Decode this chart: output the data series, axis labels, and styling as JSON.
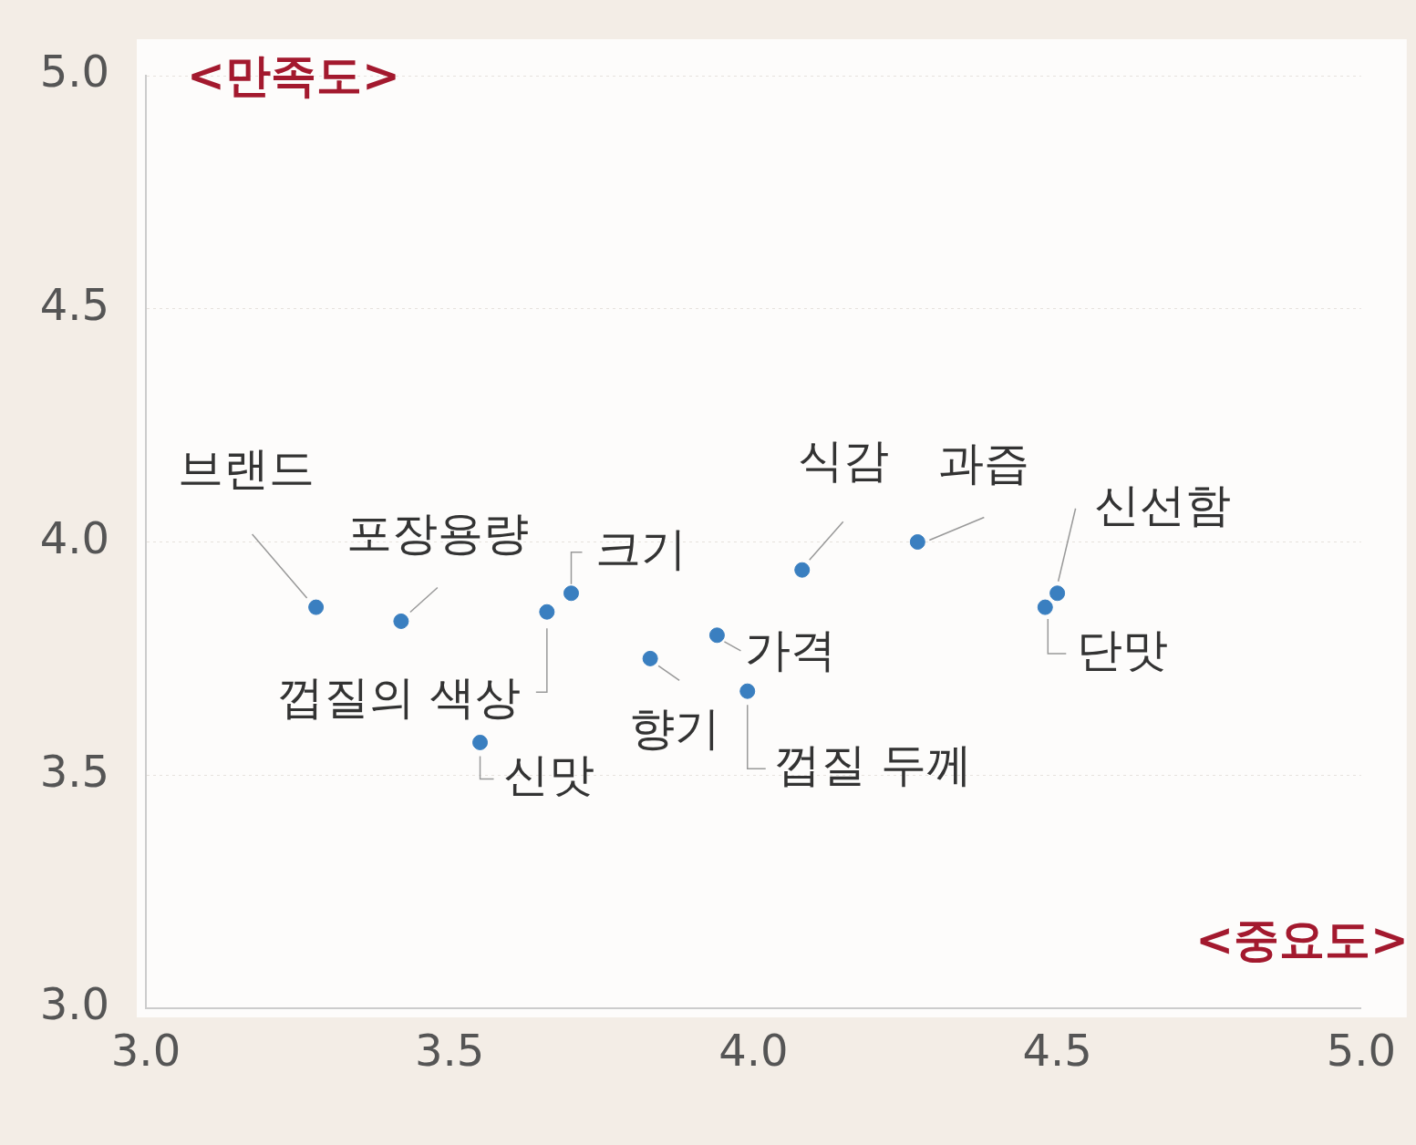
{
  "chart_data": {
    "type": "scatter",
    "xlabel": "<중요도>",
    "ylabel": "<만족도>",
    "x": [
      3.28,
      3.42,
      3.66,
      3.7,
      3.55,
      3.83,
      3.94,
      3.99,
      4.08,
      4.27,
      4.5,
      4.48
    ],
    "series": [
      {
        "color": "#3a7fc0",
        "values": [
          3.86,
          3.83,
          3.85,
          3.89,
          3.57,
          3.75,
          3.8,
          3.68,
          3.94,
          4.0,
          3.89,
          3.86
        ]
      }
    ],
    "xlim": [
      3.0,
      5.0
    ],
    "ylim": [
      3.0,
      5.0
    ],
    "xticks": [
      {
        "value": 3,
        "label": "3.0"
      },
      3.5,
      {
        "value": 4,
        "label": "4.0"
      },
      4.5,
      {
        "value": 5,
        "label": "5.0"
      }
    ],
    "yticks": [
      {
        "value": 3,
        "label": "3.0"
      },
      3.5,
      {
        "value": 4,
        "label": "4.0"
      },
      4.5,
      {
        "value": 5,
        "label": "5.0"
      }
    ],
    "grid": "y",
    "legend": false,
    "marker": "circle",
    "annotations": [
      {
        "text": "브랜드",
        "x": 3.28,
        "y": 3.86
      },
      {
        "text": "포장용량",
        "x": 3.42,
        "y": 3.83
      },
      {
        "text": "껍질의 색상",
        "x": 3.66,
        "y": 3.85
      },
      {
        "text": "크기",
        "x": 3.7,
        "y": 3.89
      },
      {
        "text": "신맛",
        "x": 3.55,
        "y": 3.57
      },
      {
        "text": "향기",
        "x": 3.83,
        "y": 3.75
      },
      {
        "text": "가격",
        "x": 3.94,
        "y": 3.8
      },
      {
        "text": "껍질 두께",
        "x": 3.99,
        "y": 3.68
      },
      {
        "text": "식감",
        "x": 4.08,
        "y": 3.94
      },
      {
        "text": "과즙",
        "x": 4.27,
        "y": 4.0
      },
      {
        "text": "신선함",
        "x": 4.5,
        "y": 3.89
      },
      {
        "text": "단맛",
        "x": 4.48,
        "y": 3.86
      }
    ]
  }
}
